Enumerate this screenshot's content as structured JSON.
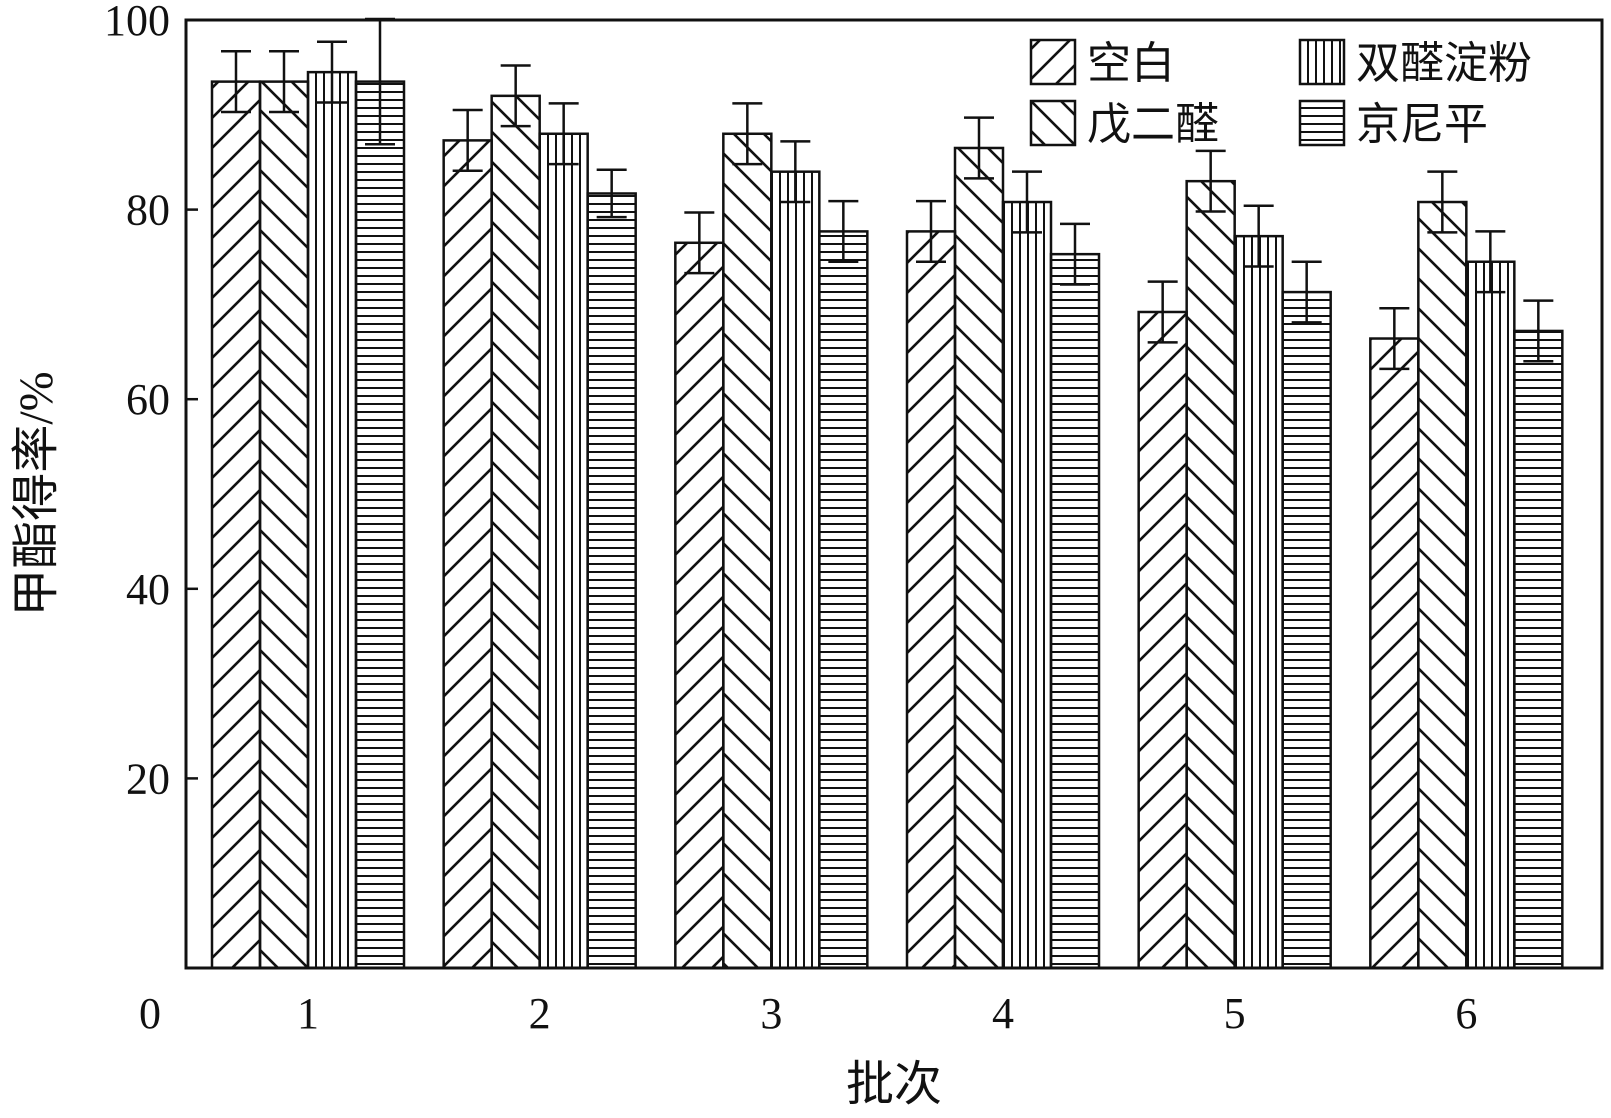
{
  "chart_data": {
    "type": "bar",
    "title": "",
    "xlabel": "批次",
    "ylabel": "甲酯得率/%",
    "categories": [
      "1",
      "2",
      "3",
      "4",
      "5",
      "6"
    ],
    "y_ticks": [
      "0",
      "20",
      "40",
      "60",
      "80",
      "100"
    ],
    "ylim": [
      0,
      100
    ],
    "grid": false,
    "legend_position": "top-right",
    "series": [
      {
        "name": "空白",
        "pattern": "diagonal-up",
        "values": [
          93.5,
          87.3,
          76.5,
          77.7,
          69.2,
          66.4
        ],
        "errors": [
          3.2,
          3.2,
          3.2,
          3.2,
          3.2,
          3.2
        ]
      },
      {
        "name": "戊二醛",
        "pattern": "diagonal-down",
        "values": [
          93.5,
          92.0,
          88.0,
          86.5,
          83.0,
          80.8
        ],
        "errors": [
          3.2,
          3.2,
          3.2,
          3.2,
          3.2,
          3.2
        ]
      },
      {
        "name": "双醛淀粉",
        "pattern": "vertical-lines",
        "values": [
          94.5,
          88.0,
          84.0,
          80.8,
          77.2,
          74.5
        ],
        "errors": [
          3.2,
          3.2,
          3.2,
          3.2,
          3.2,
          3.2
        ]
      },
      {
        "name": "京尼平",
        "pattern": "horizontal-lines",
        "values": [
          93.5,
          81.7,
          77.7,
          75.3,
          71.3,
          67.2
        ],
        "errors": [
          6.6,
          2.5,
          3.2,
          3.2,
          3.2,
          3.2
        ]
      }
    ],
    "colors": {
      "line": "#111111",
      "background": "#ffffff"
    }
  }
}
